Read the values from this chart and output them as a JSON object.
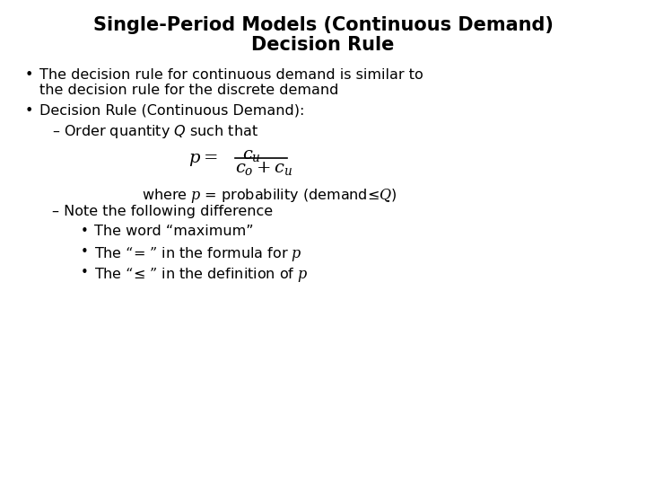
{
  "title_line1": "Single-Period Models (Continuous Demand)",
  "title_line2": "Decision Rule",
  "background_color": "#ffffff",
  "text_color": "#000000",
  "title_fontsize": 15,
  "body_fontsize": 11.5,
  "formula_fontsize": 14,
  "bullet1_line1": "The decision rule for continuous demand is similar to",
  "bullet1_line2": "the decision rule for the discrete demand",
  "bullet2": "Decision Rule (Continuous Demand):",
  "sub1": "– Order quantity $\\mathit{Q}$ such that",
  "where_line": "where $\\mathit{p}$ = probability (demand≤$\\mathit{Q}$)",
  "sub2": "– Note the following difference",
  "sub_bullet1": "The word “maximum”",
  "sub_bullet2": "The “= ” in the formula for $\\mathit{p}$",
  "sub_bullet3": "The “≤ ” in the definition of $\\mathit{p}$"
}
